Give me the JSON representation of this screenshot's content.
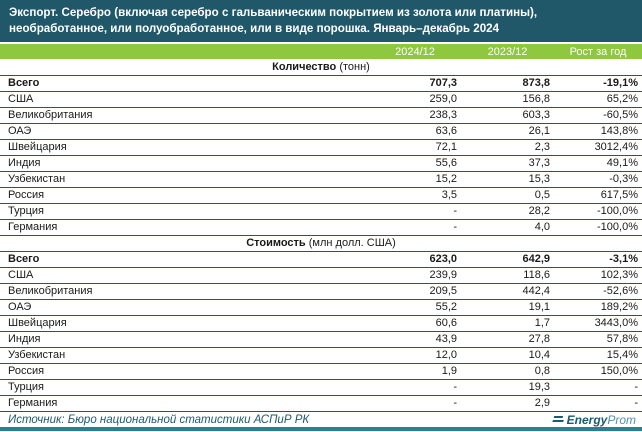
{
  "title": "Экспорт. Серебро (включая серебро с гальваническим покрытием из золота или платины), необработанное, или полуобработанное, или в виде порошка. Январь–декабрь 2024",
  "columns": {
    "col1": "2024/12",
    "col2": "2023/12",
    "col3": "Рост за год"
  },
  "chart_data": {
    "type": "table",
    "title": "Экспорт. Серебро (включая серебро с гальваническим покрытием из золота или платины), необработанное, или полуобработанное, или в виде порошка. Январь–декабрь 2024",
    "columns": [
      "2024/12",
      "2023/12",
      "Рост за год"
    ],
    "sections": [
      {
        "name": "Количество",
        "unit": "(тонн)",
        "rows": [
          {
            "label": "Всего",
            "v2024": "707,3",
            "v2023": "873,8",
            "growth": "-19,1%",
            "bold": true
          },
          {
            "label": "США",
            "v2024": "259,0",
            "v2023": "156,8",
            "growth": "65,2%",
            "bold": false
          },
          {
            "label": "Великобритания",
            "v2024": "238,3",
            "v2023": "603,3",
            "growth": "-60,5%",
            "bold": false
          },
          {
            "label": "ОАЭ",
            "v2024": "63,6",
            "v2023": "26,1",
            "growth": "143,8%",
            "bold": false
          },
          {
            "label": "Швейцария",
            "v2024": "72,1",
            "v2023": "2,3",
            "growth": "3012,4%",
            "bold": false
          },
          {
            "label": "Индия",
            "v2024": "55,6",
            "v2023": "37,3",
            "growth": "49,1%",
            "bold": false
          },
          {
            "label": "Узбекистан",
            "v2024": "15,2",
            "v2023": "15,3",
            "growth": "-0,3%",
            "bold": false
          },
          {
            "label": "Россия",
            "v2024": "3,5",
            "v2023": "0,5",
            "growth": "617,5%",
            "bold": false
          },
          {
            "label": "Турция",
            "v2024": "-",
            "v2023": "28,2",
            "growth": "-100,0%",
            "bold": false
          },
          {
            "label": "Германия",
            "v2024": "-",
            "v2023": "4,0",
            "growth": "-100,0%",
            "bold": false
          }
        ]
      },
      {
        "name": "Стоимость",
        "unit": "(млн долл. США)",
        "rows": [
          {
            "label": "Всего",
            "v2024": "623,0",
            "v2023": "642,9",
            "growth": "-3,1%",
            "bold": true
          },
          {
            "label": "США",
            "v2024": "239,9",
            "v2023": "118,6",
            "growth": "102,3%",
            "bold": false
          },
          {
            "label": "Великобритания",
            "v2024": "209,5",
            "v2023": "442,4",
            "growth": "-52,6%",
            "bold": false
          },
          {
            "label": "ОАЭ",
            "v2024": "55,2",
            "v2023": "19,1",
            "growth": "189,2%",
            "bold": false
          },
          {
            "label": "Швейцария",
            "v2024": "60,6",
            "v2023": "1,7",
            "growth": "3443,0%",
            "bold": false
          },
          {
            "label": "Индия",
            "v2024": "43,9",
            "v2023": "27,8",
            "growth": "57,8%",
            "bold": false
          },
          {
            "label": "Узбекистан",
            "v2024": "12,0",
            "v2023": "10,4",
            "growth": "15,4%",
            "bold": false
          },
          {
            "label": "Россия",
            "v2024": "1,9",
            "v2023": "0,8",
            "growth": "150,0%",
            "bold": false
          },
          {
            "label": "Турция",
            "v2024": "-",
            "v2023": "19,3",
            "growth": "-",
            "bold": false
          },
          {
            "label": "Германия",
            "v2024": "-",
            "v2023": "2,9",
            "growth": "-",
            "bold": false
          }
        ]
      }
    ]
  },
  "footer": {
    "source": "Источник: Бюро национальной статистики АСПиР РК",
    "logo_bold": "Energy",
    "logo_light": "Prom"
  },
  "colors": {
    "title_bg": "#20586a",
    "header_green": "#8fc73e",
    "border": "#24566b",
    "footer_teal": "#1d5a6e",
    "bottom_bar": "#2e7f8e"
  }
}
